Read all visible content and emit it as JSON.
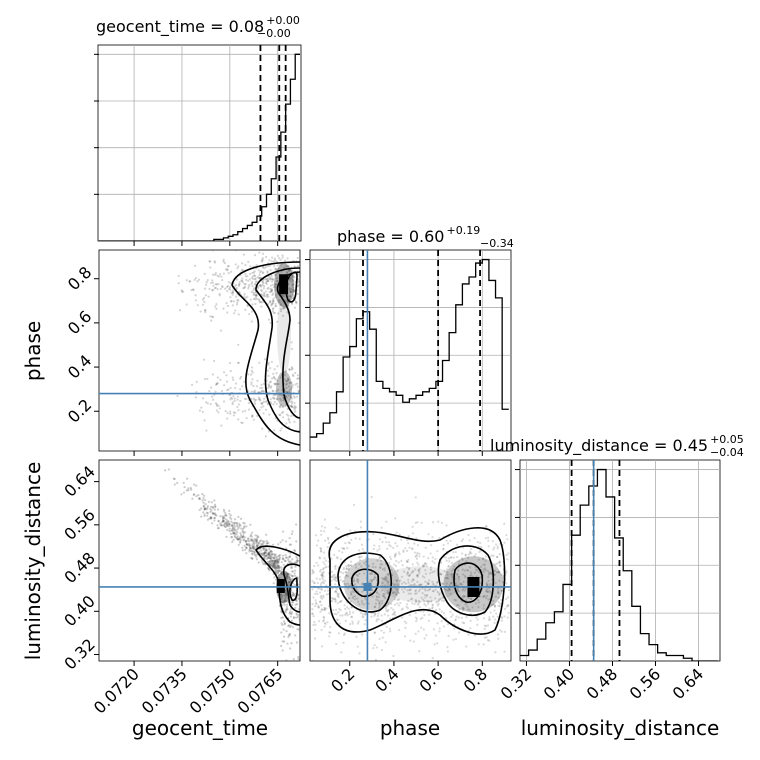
{
  "chart_data": {
    "type": "corner",
    "parameters": [
      "geocent_time",
      "phase",
      "luminosity_distance"
    ],
    "truth": {
      "phase": 0.28,
      "luminosity_distance": 0.445
    },
    "titles": [
      {
        "param": "geocent_time",
        "text": "geocent_time = 0.08",
        "plus": "+0.00",
        "minus": "−0.00"
      },
      {
        "param": "phase",
        "text": "phase = 0.60",
        "plus": "+0.19",
        "minus": "−0.34"
      },
      {
        "param": "luminosity_distance",
        "text": "luminosity_distance = 0.45",
        "plus": "+0.05",
        "minus": "−0.04"
      }
    ],
    "axes": {
      "geocent_time": {
        "label": "geocent_time",
        "range": [
          0.0709,
          0.0772
        ],
        "ticks": [
          0.072,
          0.0735,
          0.075,
          0.0765
        ],
        "tick_labels": [
          "0.0720",
          "0.0735",
          "0.0750",
          "0.0765"
        ]
      },
      "phase": {
        "label": "phase",
        "range": [
          0.02,
          0.93
        ],
        "ticks": [
          0.2,
          0.4,
          0.6,
          0.8
        ],
        "tick_labels": [
          "0.2",
          "0.4",
          "0.6",
          "0.8"
        ]
      },
      "luminosity_distance": {
        "label": "luminosity_distance",
        "range": [
          0.308,
          0.68
        ],
        "ticks": [
          0.32,
          0.4,
          0.48,
          0.56,
          0.64
        ],
        "tick_labels": [
          "0.32",
          "0.40",
          "0.48",
          "0.56",
          "0.64"
        ]
      }
    },
    "histograms": {
      "geocent_time": {
        "bins": [
          0.0709,
          0.07105,
          0.0712,
          0.07135,
          0.0715,
          0.07165,
          0.0718,
          0.07195,
          0.0721,
          0.07225,
          0.0724,
          0.07255,
          0.0727,
          0.07285,
          0.073,
          0.07315,
          0.0733,
          0.07345,
          0.0736,
          0.07375,
          0.0739,
          0.07405,
          0.0742,
          0.07435,
          0.0745,
          0.07465,
          0.0748,
          0.07495,
          0.0751,
          0.07525,
          0.0754,
          0.07555,
          0.0757,
          0.07585,
          0.076,
          0.07615,
          0.0763,
          0.07645,
          0.0766,
          0.07675,
          0.0769,
          0.07705,
          0.0772
        ],
        "counts": [
          0,
          0,
          0,
          0,
          0,
          0,
          0,
          0,
          0,
          0,
          0,
          0,
          0,
          0,
          0,
          0,
          0,
          0,
          0,
          0,
          0,
          0,
          0,
          0,
          0.5,
          0.5,
          1,
          1.5,
          2,
          3,
          4,
          5,
          6,
          8,
          11,
          15,
          20,
          27,
          35,
          44,
          52,
          60
        ],
        "quantiles": [
          0.07596,
          0.07655,
          0.07675
        ]
      },
      "phase": {
        "bins": [
          0.02,
          0.05,
          0.08,
          0.11,
          0.14,
          0.17,
          0.2,
          0.23,
          0.26,
          0.29,
          0.32,
          0.35,
          0.38,
          0.41,
          0.44,
          0.47,
          0.5,
          0.53,
          0.56,
          0.59,
          0.62,
          0.65,
          0.68,
          0.71,
          0.74,
          0.77,
          0.8,
          0.83,
          0.86,
          0.89,
          0.92
        ],
        "counts": [
          4,
          5,
          8,
          11,
          17,
          27,
          30,
          38,
          40,
          35,
          20,
          18,
          17,
          16,
          14,
          15,
          16,
          17,
          18,
          20,
          26,
          34,
          42,
          48,
          50,
          54,
          55,
          49,
          44,
          12
        ],
        "quantiles": [
          0.26,
          0.6,
          0.79
        ]
      },
      "luminosity_distance": {
        "bins": [
          0.308,
          0.324,
          0.34,
          0.356,
          0.372,
          0.388,
          0.404,
          0.42,
          0.436,
          0.452,
          0.468,
          0.484,
          0.5,
          0.516,
          0.532,
          0.548,
          0.564,
          0.58,
          0.596,
          0.612,
          0.628,
          0.644,
          0.66,
          0.676
        ],
        "counts": [
          2,
          4,
          8,
          14,
          18,
          28,
          46,
          57,
          64,
          70,
          60,
          45,
          33,
          20,
          10,
          6,
          3,
          2,
          2,
          1,
          0,
          0,
          0
        ],
        "quantiles": [
          0.404,
          0.445,
          0.493
        ]
      }
    },
    "hist2d": {
      "phase_vs_geocent_time": {
        "note": "bimodal in phase at 0.28 and 0.78, concentrated near geocent_time 0.0766"
      },
      "luminosity_distance_vs_geocent_time": {
        "note": "anti-correlated band"
      },
      "luminosity_distance_vs_phase": {
        "note": "modes near phase 0.3 and 0.76, luminosity_distance 0.45"
      }
    },
    "grid": true,
    "colors": {
      "line": "#000000",
      "truth": "#4682b4",
      "points": "#555555",
      "grid": "#b0b0b0"
    }
  }
}
